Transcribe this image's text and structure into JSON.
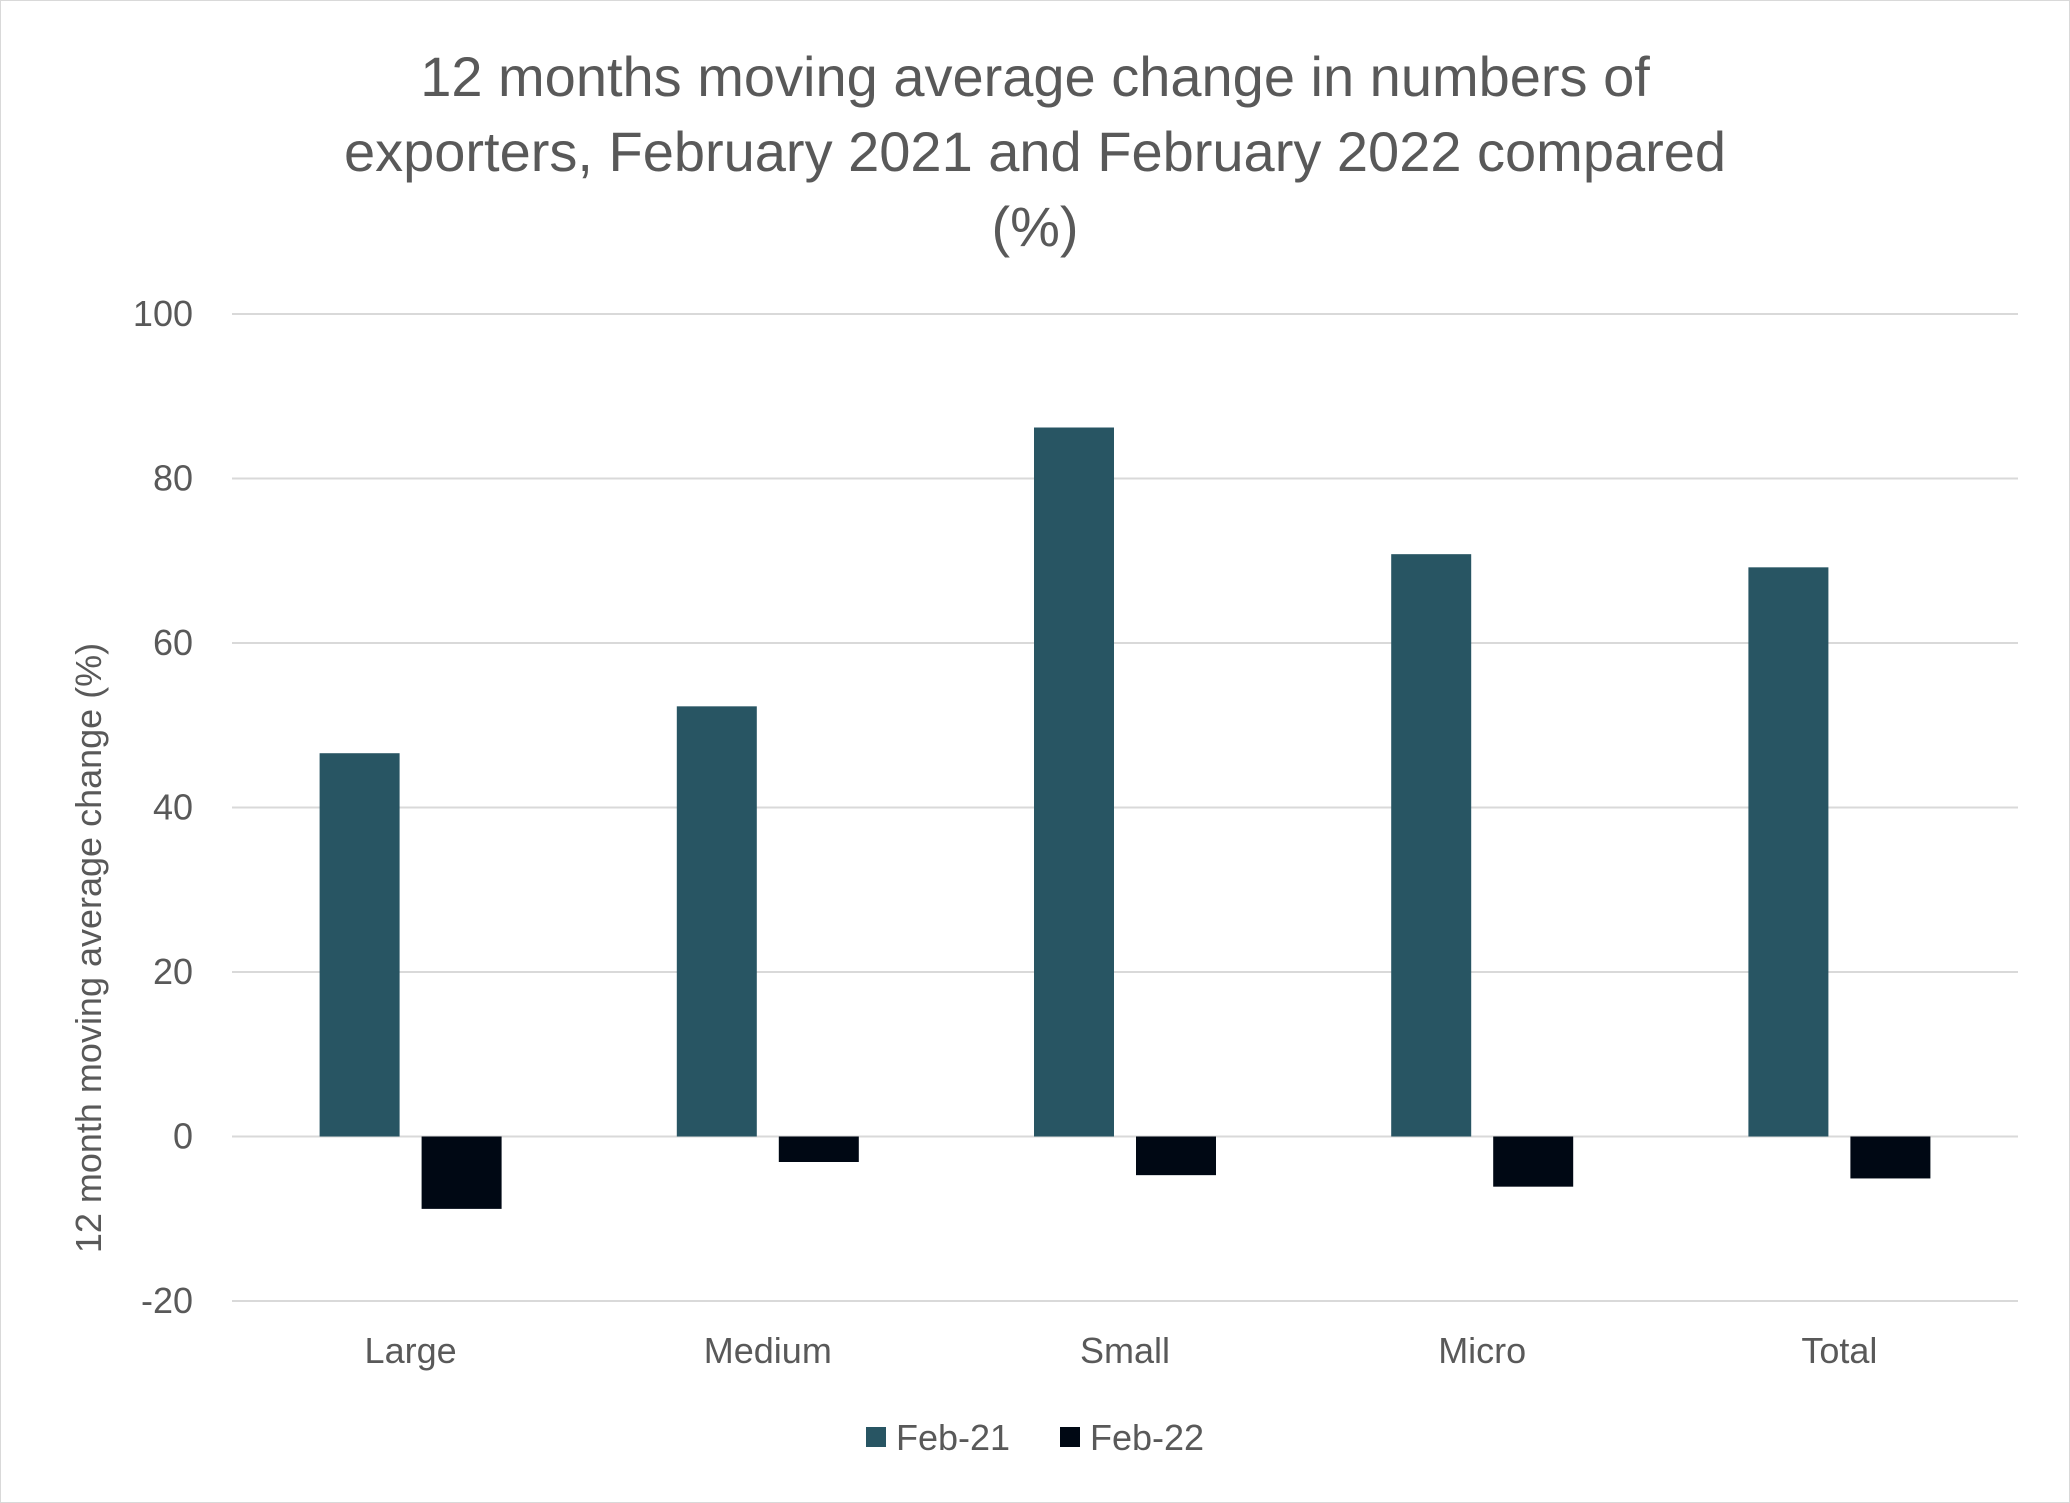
{
  "chart_data": {
    "type": "bar",
    "title": "12 months moving average change in numbers of exporters, February 2021 and February 2022 compared (%)",
    "title_lines": [
      "12 months moving average change in numbers of",
      "exporters, February 2021 and February 2022 compared",
      "(%)"
    ],
    "xlabel": "",
    "ylabel": "12 month moving average change (%)",
    "categories": [
      "Large",
      "Medium",
      "Small",
      "Micro",
      "Total"
    ],
    "series": [
      {
        "name": "Feb-21",
        "color": "#285563",
        "values": [
          46.6,
          52.3,
          86.2,
          70.8,
          69.2
        ]
      },
      {
        "name": "Feb-22",
        "color": "#000814",
        "values": [
          -8.8,
          -3.1,
          -4.7,
          -6.1,
          -5.1
        ]
      }
    ],
    "ylim": [
      -20,
      100
    ],
    "yticks": [
      -20,
      0,
      20,
      40,
      60,
      80,
      100
    ],
    "grid": true,
    "legend_position": "bottom"
  }
}
